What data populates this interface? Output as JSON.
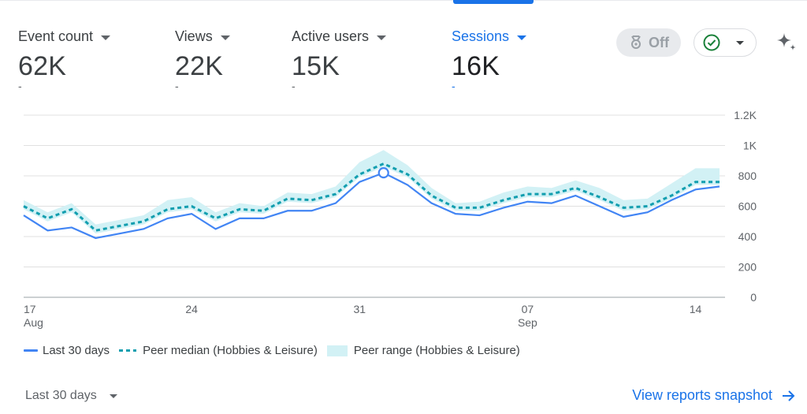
{
  "metrics": [
    {
      "label": "Event count",
      "value": "62K",
      "delta": "-"
    },
    {
      "label": "Views",
      "value": "22K",
      "delta": "-"
    },
    {
      "label": "Active users",
      "value": "15K",
      "delta": "-"
    },
    {
      "label": "Sessions",
      "value": "16K",
      "delta": "-"
    }
  ],
  "controls": {
    "toggle_label": "Off",
    "toggle_icon": "badge-icon",
    "status_icon": "check-circle-icon",
    "sparkle_icon": "sparkle-icon"
  },
  "colors": {
    "accent": "#1a73e8",
    "series_line": "#4285f4",
    "median": "#129eaf",
    "range_fill": "#d2f1f5",
    "check": "#188038"
  },
  "chart_data": {
    "type": "line",
    "x_ticks": [
      {
        "day": 17,
        "label": "17",
        "sublabel": "Aug"
      },
      {
        "day": 24,
        "label": "24",
        "sublabel": ""
      },
      {
        "day": 31,
        "label": "31",
        "sublabel": ""
      },
      {
        "day": 38,
        "label": "07",
        "sublabel": "Sep"
      },
      {
        "day": 45,
        "label": "14",
        "sublabel": ""
      }
    ],
    "y_ticks": [
      "0",
      "200",
      "400",
      "600",
      "800",
      "1K",
      "1.2K"
    ],
    "ylim": [
      0,
      1200
    ],
    "highlight_day": 32,
    "days": [
      17,
      18,
      19,
      20,
      21,
      22,
      23,
      24,
      25,
      26,
      27,
      28,
      29,
      30,
      31,
      32,
      33,
      34,
      35,
      36,
      37,
      38,
      39,
      40,
      41,
      42,
      43,
      44,
      45,
      46
    ],
    "series": [
      {
        "name": "Last 30 days",
        "style": "solid",
        "values": [
          540,
          440,
          460,
          390,
          420,
          450,
          520,
          550,
          450,
          520,
          520,
          570,
          570,
          620,
          760,
          820,
          740,
          620,
          550,
          540,
          590,
          630,
          620,
          670,
          600,
          530,
          560,
          640,
          710,
          730
        ]
      },
      {
        "name": "Peer median (Hobbies & Leisure)",
        "style": "dashed",
        "values": [
          600,
          520,
          580,
          440,
          470,
          500,
          580,
          600,
          520,
          580,
          570,
          650,
          640,
          680,
          810,
          880,
          810,
          670,
          590,
          590,
          640,
          680,
          680,
          720,
          660,
          590,
          600,
          670,
          760,
          760
        ]
      }
    ],
    "band": {
      "name": "Peer range (Hobbies & Leisure)",
      "low": [
        580,
        500,
        560,
        420,
        450,
        480,
        560,
        580,
        500,
        560,
        550,
        630,
        620,
        660,
        790,
        860,
        790,
        650,
        570,
        570,
        620,
        660,
        660,
        700,
        640,
        570,
        580,
        650,
        740,
        740
      ],
      "high": [
        640,
        560,
        620,
        480,
        510,
        540,
        640,
        660,
        560,
        620,
        600,
        690,
        680,
        730,
        890,
        970,
        870,
        720,
        620,
        630,
        690,
        730,
        720,
        770,
        720,
        640,
        650,
        750,
        850,
        850
      ]
    }
  },
  "legend": [
    {
      "label": "Last 30 days"
    },
    {
      "label": "Peer median (Hobbies & Leisure)"
    },
    {
      "label": "Peer range (Hobbies & Leisure)"
    }
  ],
  "footer": {
    "range_label": "Last 30 days",
    "snapshot_link": "View reports snapshot"
  }
}
